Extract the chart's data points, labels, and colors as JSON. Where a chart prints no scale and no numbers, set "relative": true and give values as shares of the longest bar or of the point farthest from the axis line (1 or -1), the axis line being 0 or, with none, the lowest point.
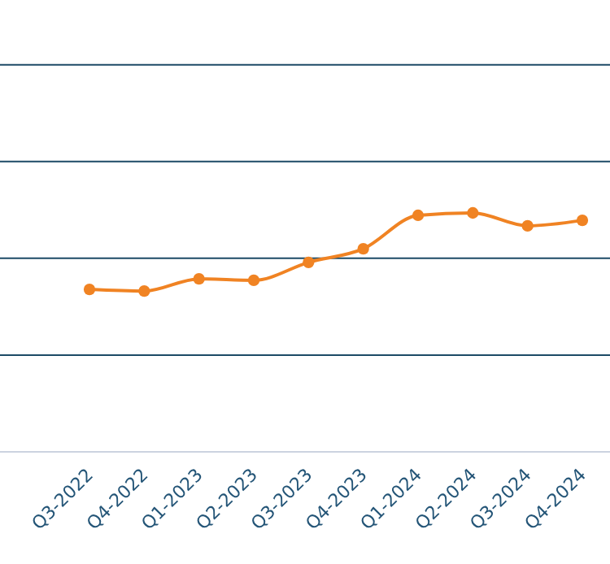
{
  "chart_data": {
    "type": "line",
    "relative": true,
    "marker": "circle",
    "line_style": "solid",
    "categories": [
      "Q3-2022",
      "Q4-2022",
      "Q1-2023",
      "Q2-2023",
      "Q3-2023",
      "Q4-2023",
      "Q1-2024",
      "Q2-2024",
      "Q3-2024",
      "Q4-2024"
    ],
    "series": [
      {
        "color": "#f08323",
        "values": [
          0.68,
          0.673,
          0.724,
          0.718,
          0.793,
          0.85,
          0.99,
          1,
          0.946,
          0.969
        ]
      }
    ],
    "ref_lines": [
      {
        "axis": "y",
        "value": 0.405,
        "color": "#1c4a66"
      },
      {
        "axis": "y",
        "value": 0.81,
        "color": "#1c4a66"
      },
      {
        "axis": "y",
        "value": 1.215,
        "color": "#1c4a66"
      },
      {
        "axis": "y",
        "value": 1.62,
        "color": "#1c4a66"
      }
    ]
  }
}
